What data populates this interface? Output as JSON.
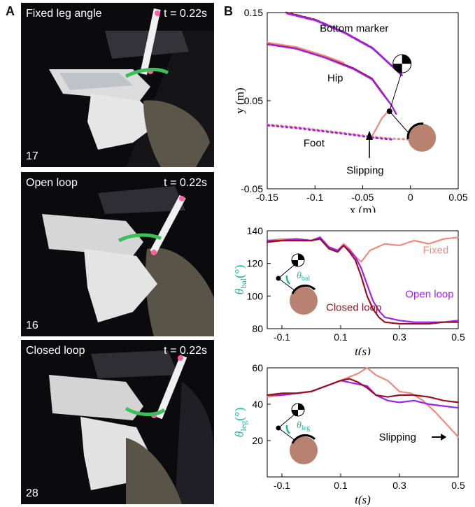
{
  "panel_a": {
    "letter": "A",
    "photos": [
      {
        "title": "Fixed leg angle",
        "time": "t = 0.22s",
        "trial": "17"
      },
      {
        "title": "Open loop",
        "time": "t = 0.22s",
        "trial": "16"
      },
      {
        "title": "Closed loop",
        "time": "t = 0.22s",
        "trial": "28"
      }
    ]
  },
  "panel_b": {
    "letter": "B",
    "colors": {
      "fixed": "#f08a7e",
      "open_loop": "#a020f0",
      "closed_loop": "#9b1020",
      "accent": "#1abc9c",
      "branch": "#b98170"
    }
  },
  "chart_data": [
    {
      "type": "line",
      "xlabel": "x (m)",
      "ylabel": "y (m)",
      "xlim": [
        -0.15,
        0.05
      ],
      "ylim": [
        -0.05,
        0.15
      ],
      "xticks": [
        "-0.15",
        "-0.1",
        "-0.05",
        "0",
        "0.05"
      ],
      "yticks": [
        "-0.05",
        "0.05",
        "0.15"
      ],
      "annotations": [
        "Bottom marker",
        "Hip",
        "Foot",
        "Slipping"
      ],
      "series": [
        {
          "style": "closed_loop",
          "role": "hip",
          "points": [
            [
              -0.15,
              0.115
            ],
            [
              -0.12,
              0.11
            ],
            [
              -0.09,
              0.1
            ],
            [
              -0.06,
              0.087
            ],
            [
              -0.04,
              0.075
            ],
            [
              -0.03,
              0.06
            ],
            [
              -0.02,
              0.045
            ],
            [
              -0.015,
              0.035
            ]
          ]
        },
        {
          "style": "open_loop",
          "role": "hip",
          "points": [
            [
              -0.15,
              0.114
            ],
            [
              -0.12,
              0.109
            ],
            [
              -0.09,
              0.099
            ],
            [
              -0.06,
              0.086
            ],
            [
              -0.04,
              0.074
            ],
            [
              -0.03,
              0.059
            ],
            [
              -0.02,
              0.045
            ],
            [
              -0.015,
              0.035
            ]
          ]
        },
        {
          "style": "fixed",
          "role": "hip",
          "points": [
            [
              -0.15,
              0.116
            ],
            [
              -0.12,
              0.111
            ],
            [
              -0.09,
              0.101
            ],
            [
              -0.07,
              0.093
            ]
          ]
        },
        {
          "style": "closed_loop",
          "role": "bottom_marker",
          "points": [
            [
              -0.13,
              0.15
            ],
            [
              -0.1,
              0.142
            ],
            [
              -0.07,
              0.128
            ],
            [
              -0.04,
              0.11
            ],
            [
              -0.02,
              0.09
            ],
            [
              -0.01,
              0.08
            ]
          ]
        },
        {
          "style": "open_loop",
          "role": "bottom_marker",
          "points": [
            [
              -0.129,
              0.149
            ],
            [
              -0.099,
              0.141
            ],
            [
              -0.069,
              0.127
            ],
            [
              -0.039,
              0.109
            ],
            [
              -0.019,
              0.089
            ],
            [
              -0.009,
              0.079
            ]
          ]
        },
        {
          "style": "fixed",
          "role": "foot",
          "points": [
            [
              -0.15,
              0.023
            ],
            [
              -0.12,
              0.02
            ],
            [
              -0.09,
              0.016
            ],
            [
              -0.06,
              0.012
            ],
            [
              -0.04,
              0.009
            ],
            [
              -0.02,
              0.007
            ],
            [
              0.0,
              0.006
            ]
          ]
        },
        {
          "style": "open_loop",
          "role": "foot",
          "points": [
            [
              -0.149,
              0.022
            ],
            [
              -0.119,
              0.019
            ],
            [
              -0.089,
              0.015
            ],
            [
              -0.059,
              0.011
            ],
            [
              -0.039,
              0.008
            ],
            [
              -0.019,
              0.006
            ]
          ]
        },
        {
          "style": "fixed",
          "role": "foot_slip",
          "points": [
            [
              -0.04,
              0.01
            ],
            [
              -0.035,
              0.02
            ],
            [
              -0.03,
              0.03
            ],
            [
              -0.025,
              0.036
            ]
          ]
        }
      ]
    },
    {
      "type": "line",
      "xlabel": "t(s)",
      "ylabel": "θbal(°)",
      "xlim": [
        -0.15,
        0.5
      ],
      "ylim": [
        80,
        140
      ],
      "xticks": [
        "-0.1",
        "0.1",
        "0.3",
        "0.5"
      ],
      "yticks": [
        "80",
        "100",
        "120",
        "140"
      ],
      "inset_label": "θbal",
      "series": [
        {
          "name": "Fixed",
          "style": "fixed",
          "x": [
            -0.15,
            -0.1,
            -0.05,
            0.0,
            0.03,
            0.06,
            0.09,
            0.11,
            0.13,
            0.15,
            0.17,
            0.2,
            0.25,
            0.3,
            0.35,
            0.4,
            0.45,
            0.5
          ],
          "y": [
            134,
            135,
            135,
            134,
            136,
            130,
            128,
            132,
            129,
            124,
            121,
            128,
            132,
            131,
            134,
            132,
            135,
            136
          ]
        },
        {
          "name": "Open loop",
          "style": "open_loop",
          "x": [
            -0.15,
            -0.1,
            -0.05,
            0.0,
            0.03,
            0.06,
            0.09,
            0.11,
            0.13,
            0.15,
            0.17,
            0.19,
            0.21,
            0.23,
            0.25,
            0.3,
            0.35,
            0.4,
            0.45,
            0.5
          ],
          "y": [
            134,
            134,
            135,
            134,
            136,
            130,
            128,
            131,
            128,
            124,
            117,
            107,
            97,
            91,
            87,
            85,
            84,
            84,
            84,
            85
          ]
        },
        {
          "name": "Closed loop",
          "style": "closed_loop",
          "x": [
            -0.15,
            -0.1,
            -0.05,
            0.0,
            0.03,
            0.06,
            0.09,
            0.11,
            0.13,
            0.15,
            0.17,
            0.19,
            0.21,
            0.23,
            0.25,
            0.3,
            0.35,
            0.4,
            0.45,
            0.5
          ],
          "y": [
            133,
            134,
            134,
            134,
            135,
            129,
            127,
            131,
            127,
            122,
            112,
            100,
            92,
            87,
            84,
            83,
            83,
            83,
            84,
            84
          ]
        }
      ]
    },
    {
      "type": "line",
      "xlabel": "t(s)",
      "ylabel": "θleg(°)",
      "xlim": [
        -0.15,
        0.5
      ],
      "ylim": [
        0,
        60
      ],
      "xticks": [
        "-0.1",
        "0.1",
        "0.3",
        "0.5"
      ],
      "yticks": [
        "20",
        "40",
        "60"
      ],
      "inset_label": "θleg",
      "annotations": [
        "Slipping"
      ],
      "series": [
        {
          "style": "fixed",
          "x": [
            -0.15,
            -0.1,
            -0.05,
            0.0,
            0.05,
            0.1,
            0.13,
            0.16,
            0.19,
            0.22,
            0.26,
            0.3,
            0.34,
            0.38,
            0.42,
            0.46,
            0.5
          ],
          "y": [
            44,
            45,
            46,
            47,
            50,
            53,
            55,
            57,
            60,
            56,
            53,
            47,
            46,
            42,
            36,
            29,
            22
          ]
        },
        {
          "style": "open_loop",
          "x": [
            -0.15,
            -0.1,
            -0.05,
            0.0,
            0.05,
            0.1,
            0.13,
            0.16,
            0.19,
            0.22,
            0.26,
            0.3,
            0.35,
            0.4,
            0.45,
            0.5
          ],
          "y": [
            45,
            45,
            46,
            47,
            50,
            53,
            52,
            51,
            50,
            45,
            42,
            41,
            42,
            40,
            39,
            38
          ]
        },
        {
          "style": "closed_loop",
          "x": [
            -0.15,
            -0.1,
            -0.05,
            0.0,
            0.05,
            0.1,
            0.13,
            0.16,
            0.19,
            0.22,
            0.26,
            0.3,
            0.35,
            0.4,
            0.45,
            0.5
          ],
          "y": [
            45,
            46,
            46,
            47,
            50,
            53,
            54,
            52,
            49,
            45,
            44,
            45,
            45,
            44,
            42,
            41
          ]
        }
      ]
    }
  ]
}
